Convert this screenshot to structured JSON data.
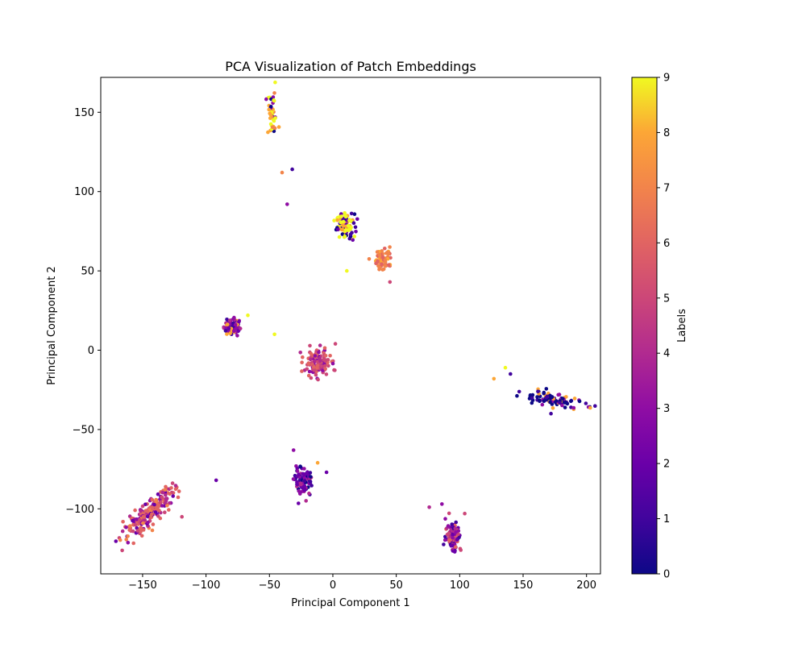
{
  "chart_data": {
    "type": "scatter",
    "title": "PCA Visualization of Patch Embeddings",
    "xlabel": "Principal Component 1",
    "ylabel": "Principal Component 2",
    "xlim": [
      -183,
      211
    ],
    "ylim": [
      -141,
      172
    ],
    "x_ticks": [
      -150,
      -100,
      -50,
      0,
      50,
      100,
      150,
      200
    ],
    "y_ticks": [
      -100,
      -50,
      0,
      50,
      100,
      150
    ],
    "x_tick_labels": [
      "−150",
      "−100",
      "−50",
      "0",
      "50",
      "100",
      "150",
      "200"
    ],
    "y_tick_labels": [
      "−100",
      "−50",
      "0",
      "50",
      "100",
      "150"
    ],
    "grid": false,
    "colormap": "plasma",
    "colorbar": {
      "label": "Labels",
      "min": 0,
      "max": 9,
      "ticks": [
        0,
        1,
        2,
        3,
        4,
        5,
        6,
        7,
        8,
        9
      ],
      "tick_labels": [
        "0",
        "1",
        "2",
        "3",
        "4",
        "5",
        "6",
        "7",
        "8",
        "9"
      ]
    },
    "clusters": [
      {
        "center": [
          -48,
          148
        ],
        "spread": [
          2.5,
          7
        ],
        "rotation": 0,
        "count": 40,
        "labels": [
          9,
          9,
          8,
          8,
          3,
          0,
          9,
          7
        ]
      },
      {
        "center": [
          10,
          78
        ],
        "spread": [
          3.5,
          4
        ],
        "rotation": 0,
        "count": 90,
        "labels": [
          9,
          9,
          8,
          1,
          0,
          2,
          9,
          8
        ]
      },
      {
        "center": [
          40,
          58
        ],
        "spread": [
          3.5,
          3.5
        ],
        "rotation": 0,
        "count": 70,
        "labels": [
          7,
          7,
          6,
          7,
          8,
          6
        ]
      },
      {
        "center": [
          -80,
          15
        ],
        "spread": [
          3,
          3
        ],
        "rotation": 0,
        "count": 70,
        "labels": [
          3,
          2,
          4,
          1,
          3,
          8
        ]
      },
      {
        "center": [
          -12,
          -8
        ],
        "spread": [
          5,
          4
        ],
        "rotation": 0,
        "count": 130,
        "labels": [
          5,
          6,
          4,
          5,
          3,
          6
        ]
      },
      {
        "center": [
          172,
          -31
        ],
        "spread": [
          12,
          2
        ],
        "rotation": -10,
        "count": 110,
        "labels": [
          0,
          0,
          0,
          1,
          8,
          3
        ]
      },
      {
        "center": [
          -23,
          -83
        ],
        "spread": [
          3.5,
          4.5
        ],
        "rotation": 0,
        "count": 90,
        "labels": [
          2,
          1,
          3,
          2,
          0,
          4
        ]
      },
      {
        "center": [
          -145,
          -103
        ],
        "spread": [
          13,
          3
        ],
        "rotation": 38,
        "count": 220,
        "labels": [
          6,
          6,
          5,
          4,
          2,
          7,
          3,
          6
        ]
      },
      {
        "center": [
          95,
          -117
        ],
        "spread": [
          3,
          5
        ],
        "rotation": 0,
        "count": 100,
        "labels": [
          4,
          3,
          2,
          5,
          1,
          6
        ]
      }
    ],
    "outliers": [
      {
        "x": -36,
        "y": 92,
        "label": 3
      },
      {
        "x": -32,
        "y": 114,
        "label": 1
      },
      {
        "x": -40,
        "y": 112,
        "label": 7
      },
      {
        "x": -46,
        "y": 10,
        "label": 9
      },
      {
        "x": -67,
        "y": 22,
        "label": 9
      },
      {
        "x": -92,
        "y": -82,
        "label": 2
      },
      {
        "x": -31,
        "y": -63,
        "label": 3
      },
      {
        "x": -12,
        "y": -71,
        "label": 8
      },
      {
        "x": -5,
        "y": -77,
        "label": 2
      },
      {
        "x": 127,
        "y": -18,
        "label": 8
      },
      {
        "x": 136,
        "y": -11,
        "label": 9
      },
      {
        "x": 140,
        "y": -15,
        "label": 1
      },
      {
        "x": 172,
        "y": -40,
        "label": 1
      },
      {
        "x": 76,
        "y": -99,
        "label": 4
      },
      {
        "x": 86,
        "y": -97,
        "label": 3
      },
      {
        "x": 104,
        "y": -103,
        "label": 5
      },
      {
        "x": 45,
        "y": 43,
        "label": 5
      },
      {
        "x": 11,
        "y": 50,
        "label": 9
      },
      {
        "x": -10,
        "y": 3,
        "label": 4
      },
      {
        "x": 2,
        "y": 4,
        "label": 5
      },
      {
        "x": -119,
        "y": -105,
        "label": 5
      }
    ]
  }
}
